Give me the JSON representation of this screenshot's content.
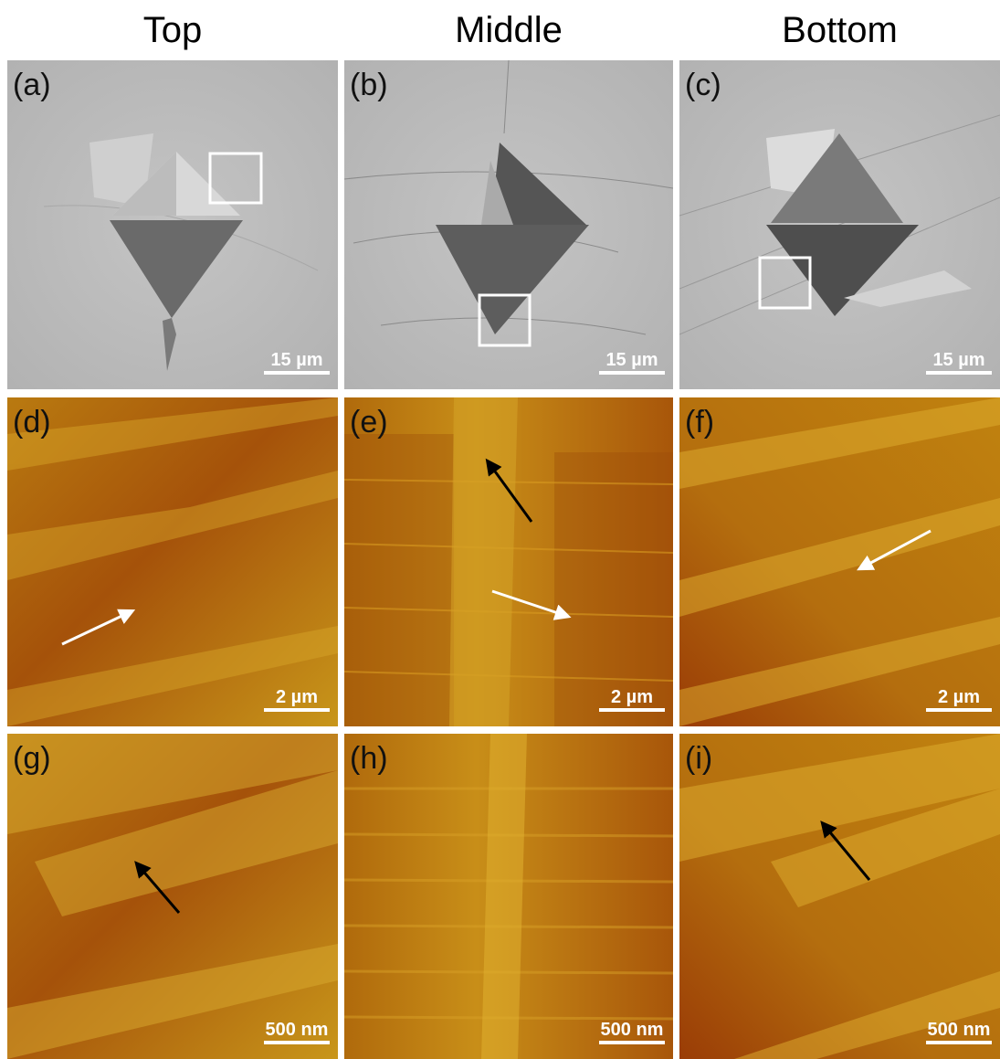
{
  "headers": [
    "Top",
    "Middle",
    "Bottom"
  ],
  "panels": [
    {
      "label": "(a)",
      "scale_bar": "15 µm"
    },
    {
      "label": "(b)",
      "scale_bar": "15 µm"
    },
    {
      "label": "(c)",
      "scale_bar": "15 µm"
    },
    {
      "label": "(d)",
      "scale_bar": "2 µm"
    },
    {
      "label": "(e)",
      "scale_bar": "2 µm"
    },
    {
      "label": "(f)",
      "scale_bar": "2 µm"
    },
    {
      "label": "(g)",
      "scale_bar": "500 nm"
    },
    {
      "label": "(h)",
      "scale_bar": "500 nm"
    },
    {
      "label": "(i)",
      "scale_bar": "500 nm"
    }
  ]
}
